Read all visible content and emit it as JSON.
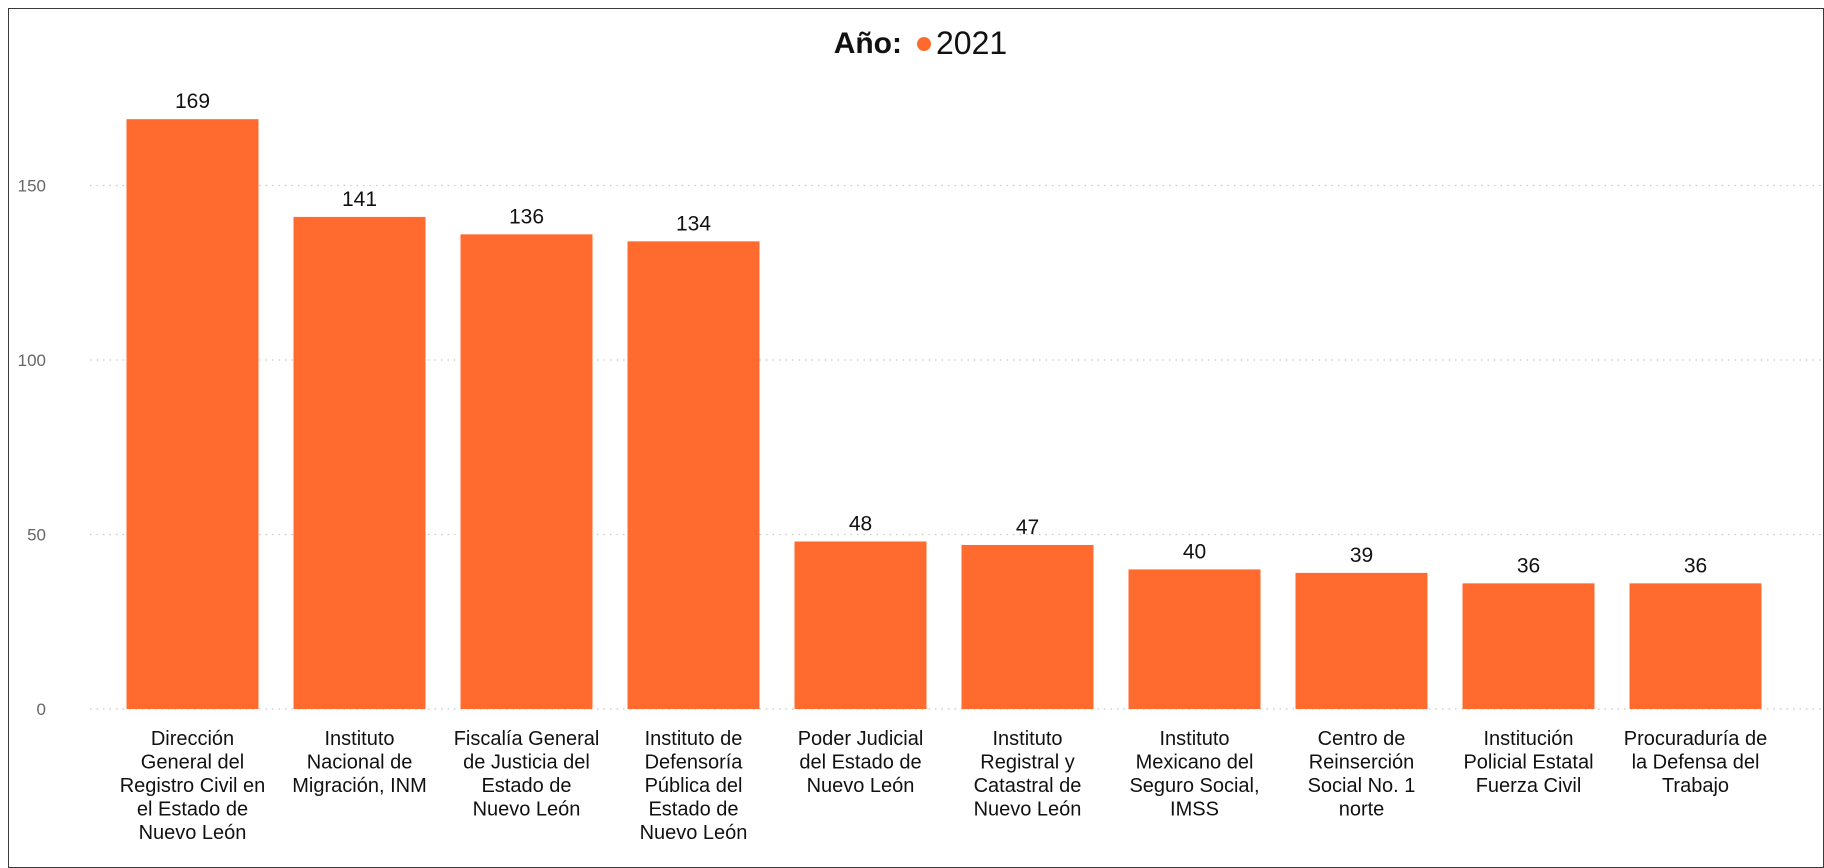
{
  "chart_data": {
    "type": "bar",
    "legend": {
      "title": "Año:",
      "entries": [
        "2021"
      ],
      "placement": "top-center"
    },
    "series": [
      {
        "name": "2021",
        "color": "#FF6B2E"
      }
    ],
    "categories": [
      [
        "Dirección",
        "General del",
        "Registro Civil en",
        "el Estado de",
        "Nuevo León"
      ],
      [
        "Instituto",
        "Nacional de",
        "Migración, INM"
      ],
      [
        "Fiscalía General",
        "de Justicia del",
        "Estado de",
        "Nuevo León"
      ],
      [
        "Instituto de",
        "Defensoría",
        "Pública del",
        "Estado de",
        "Nuevo León"
      ],
      [
        "Poder Judicial",
        "del Estado de",
        "Nuevo León"
      ],
      [
        "Instituto",
        "Registral y",
        "Catastral de",
        "Nuevo León"
      ],
      [
        "Instituto",
        "Mexicano del",
        "Seguro Social,",
        "IMSS"
      ],
      [
        "Centro de",
        "Reinserción",
        "Social No. 1",
        "norte"
      ],
      [
        "Institución",
        "Policial Estatal",
        "Fuerza Civil"
      ],
      [
        "Procuraduría de",
        "la Defensa del",
        "Trabajo"
      ]
    ],
    "values": [
      169,
      141,
      136,
      134,
      48,
      47,
      40,
      39,
      36,
      36
    ],
    "y_ticks": [
      0,
      50,
      100,
      150
    ],
    "ylim": [
      0,
      185
    ],
    "grid": true,
    "data_labels": true
  }
}
